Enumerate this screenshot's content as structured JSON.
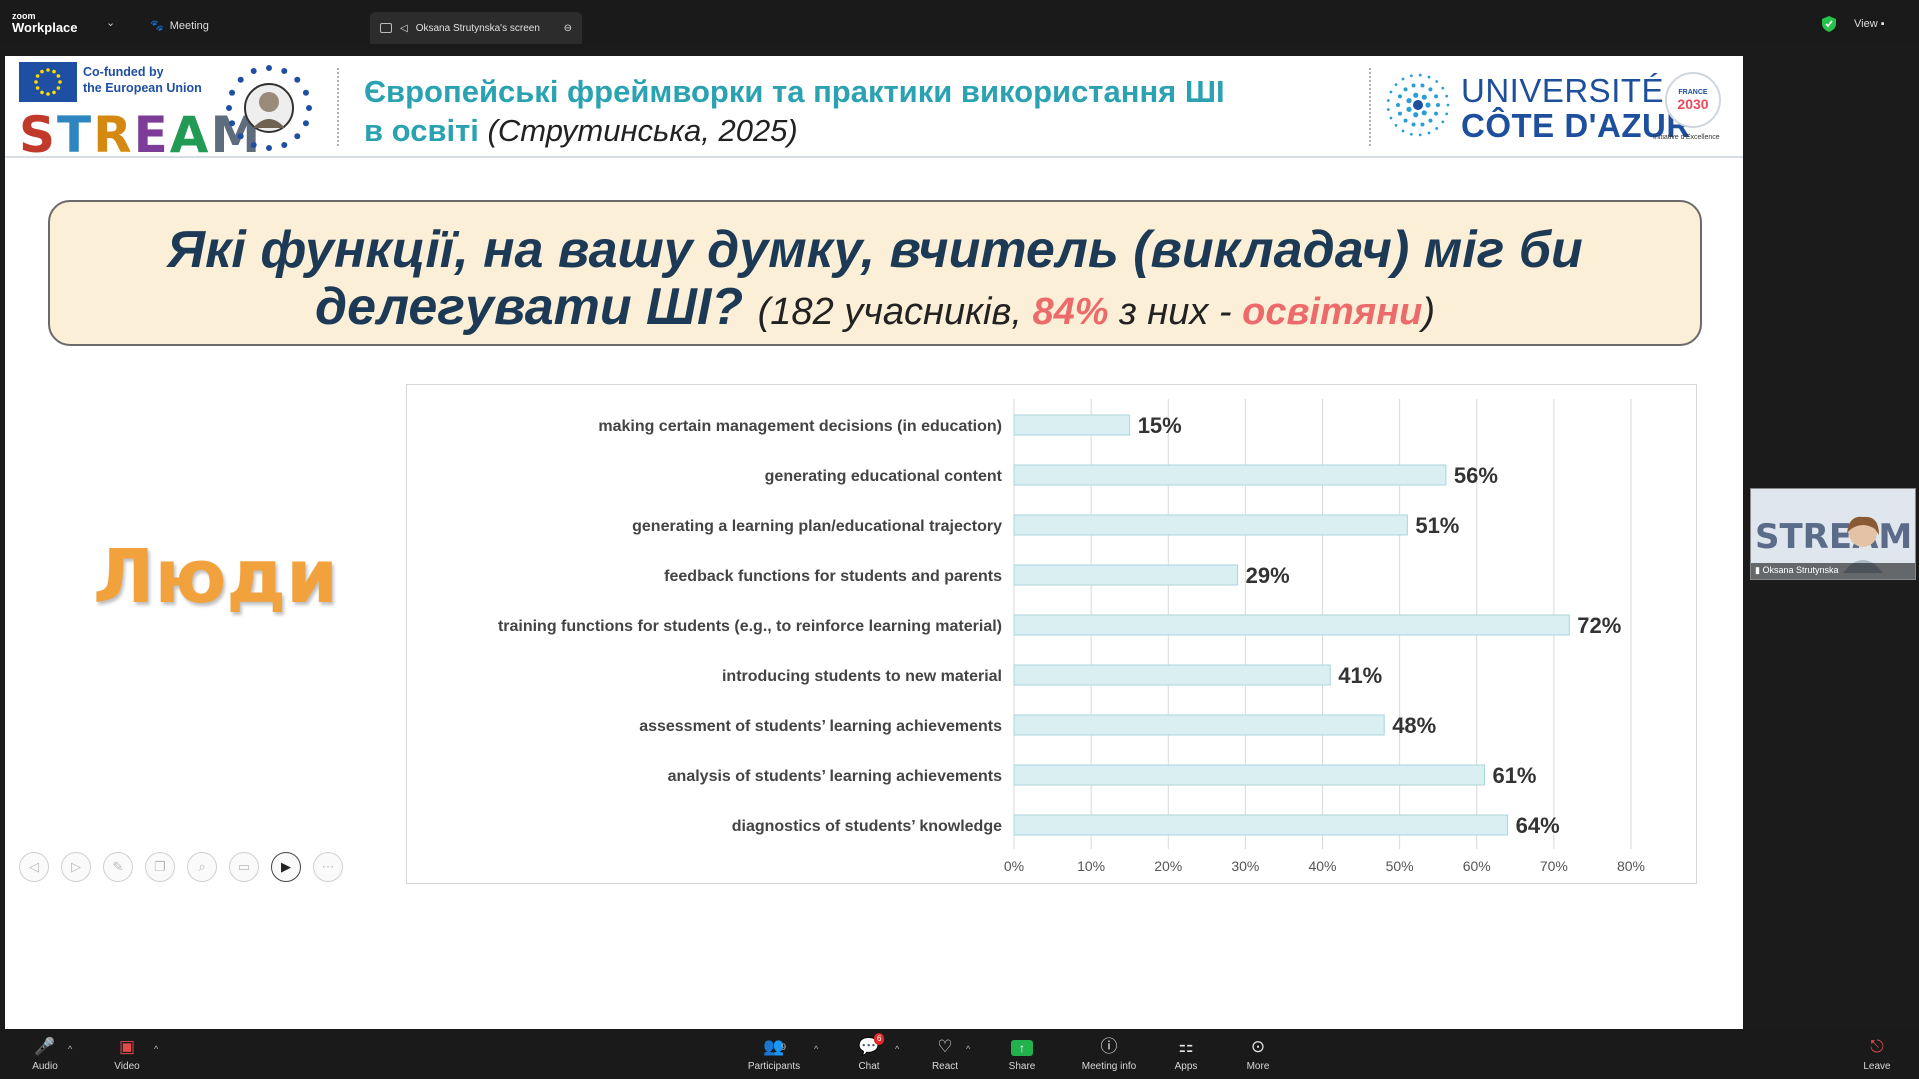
{
  "topbar": {
    "brand_small": "zoom",
    "brand_big": "Workplace",
    "meeting_label": "Meeting",
    "screen_tab_label": "Oksana Strutynska's screen",
    "view_label": "View"
  },
  "slide": {
    "eu_text_line1": "Co-funded by",
    "eu_text_line2": "the European Union",
    "stream_logo": "STREAM",
    "title_line1": "Європейські фреймворки та практики використання ШІ",
    "title_line2": "в освіті",
    "title_cite": "(Струтинська, 2025)",
    "uca_line1": "UNIVERSITÉ",
    "uca_line2": "CÔTE D'AZUR",
    "france_top": "FRANCE",
    "france_year": "2030",
    "france_caption": "Initiative d'Excellence",
    "question_part1": "Які функції, на вашу думку, вчитель (викладач) міг би",
    "question_part2": "делегувати ШІ?",
    "question_meta_a": "(182 учасників,",
    "question_meta_pct": "84%",
    "question_meta_b": "з них -",
    "question_meta_hl": "освітяни",
    "question_meta_c": ")",
    "side_label": "Люди"
  },
  "chart_data": {
    "type": "bar",
    "orientation": "horizontal",
    "categories": [
      "making certain management decisions (in education)",
      "generating educational content",
      "generating a learning plan/educational trajectory",
      "feedback functions for students and parents",
      "training functions for students (e.g., to reinforce learning material)",
      "introducing students to new material",
      "assessment of students’ learning achievements",
      "analysis of students’ learning achievements",
      "diagnostics of students’ knowledge"
    ],
    "values": [
      15,
      56,
      51,
      29,
      72,
      41,
      48,
      61,
      64
    ],
    "value_labels": [
      "15%",
      "56%",
      "51%",
      "29%",
      "72%",
      "41%",
      "48%",
      "61%",
      "64%"
    ],
    "xlim": [
      0,
      80
    ],
    "xticks": [
      "0%",
      "10%",
      "20%",
      "30%",
      "40%",
      "50%",
      "60%",
      "70%",
      "80%"
    ],
    "grid": "vertical",
    "bar_color": "#daeff2",
    "bar_edge": "#a9d4dc"
  },
  "presenter_tools": [
    "prev-icon",
    "next-icon",
    "pen-icon",
    "copy-icon",
    "zoom-icon",
    "subtitle-icon",
    "camera-icon",
    "more-icon"
  ],
  "participant": {
    "name": "Oksana Strutynska",
    "tile_logo": "STREAM"
  },
  "bottombar": {
    "audio": "Audio",
    "video": "Video",
    "participants": "Participants",
    "participants_count": "9",
    "chat": "Chat",
    "chat_badge": "6",
    "react": "React",
    "share": "Share",
    "meeting_info": "Meeting info",
    "apps": "Apps",
    "more": "More",
    "leave": "Leave"
  },
  "colors": {
    "title_teal": "#2aa2b2",
    "question_navy": "#1c3a55",
    "highlight_red": "#ec6a6a",
    "people_orange": "#f2a23d",
    "share_green": "#23b14d"
  }
}
